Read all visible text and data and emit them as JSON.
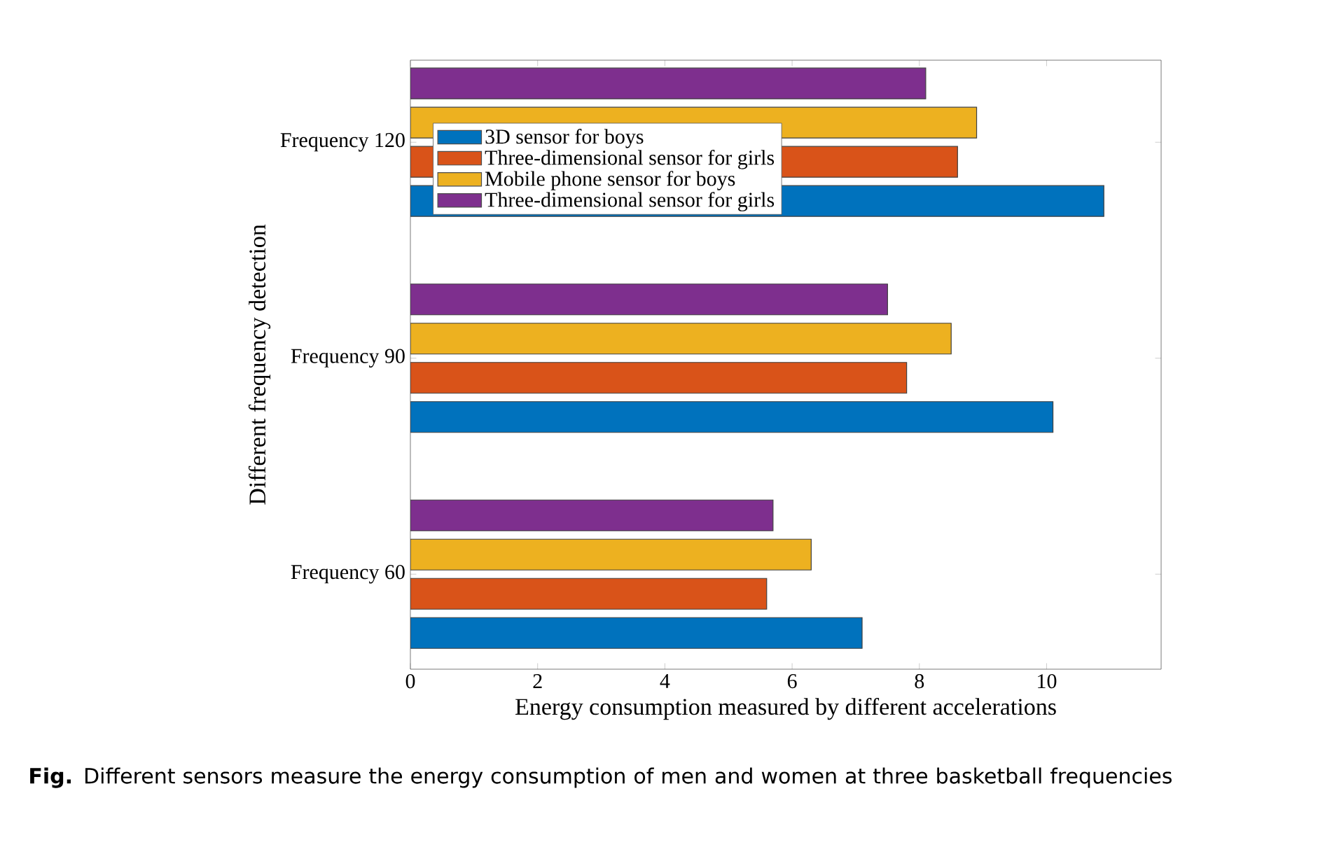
{
  "chart_data": {
    "type": "bar",
    "orientation": "horizontal",
    "xlabel": "Energy consumption measured by different accelerations",
    "ylabel": "Different frequency detection",
    "categories": [
      "Frequency 120",
      "Frequency 90",
      "Frequency 60"
    ],
    "series": [
      {
        "name": "3D sensor for boys",
        "color": "#0072bd",
        "values": [
          10.9,
          10.1,
          7.1
        ]
      },
      {
        "name": "Three-dimensional sensor for girls",
        "color": "#d95319",
        "values": [
          8.6,
          7.8,
          5.6
        ]
      },
      {
        "name": "Mobile phone sensor for boys",
        "color": "#edb120",
        "values": [
          8.9,
          8.5,
          6.3
        ]
      },
      {
        "name": "Three-dimensional sensor for girls",
        "color": "#7e2f8e",
        "values": [
          8.1,
          7.5,
          5.7
        ]
      }
    ],
    "xlim": [
      0,
      11.8
    ],
    "xticks": [
      0,
      2,
      4,
      6,
      8,
      10
    ],
    "legend": "top left",
    "grid": false,
    "annotations": [
      "**Fig.** Different sensors measure the energy consumption of men and women at three basketball frequencies"
    ]
  }
}
